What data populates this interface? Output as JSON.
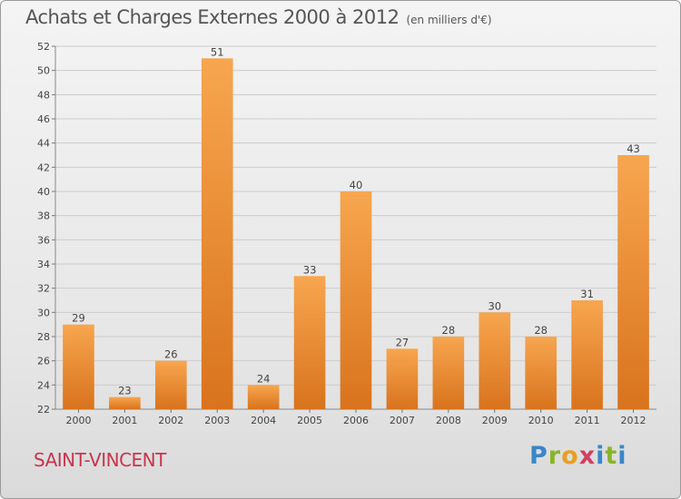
{
  "header": {
    "title": "Achats et Charges Externes 2000 à 2012",
    "unit": "(en milliers d'€)"
  },
  "footer": {
    "city": "SAINT-VINCENT",
    "logo_letters": [
      "P",
      "r",
      "o",
      "x",
      "i",
      "t",
      "i"
    ]
  },
  "colors": {
    "bar_light": "#f7a64f",
    "bar_dark": "#d9731d",
    "grid": "#cccccc",
    "city": "#c8344f"
  },
  "chart_data": {
    "type": "bar",
    "title": "Achats et Charges Externes 2000 à 2012",
    "subtitle": "(en milliers d'€)",
    "xlabel": "",
    "ylabel": "",
    "categories": [
      "2000",
      "2001",
      "2002",
      "2003",
      "2004",
      "2005",
      "2006",
      "2007",
      "2008",
      "2009",
      "2010",
      "2011",
      "2012"
    ],
    "values": [
      29,
      23,
      26,
      51,
      24,
      33,
      40,
      27,
      28,
      30,
      28,
      31,
      43
    ],
    "ylim": [
      22,
      52
    ],
    "yticks": [
      22,
      24,
      26,
      28,
      30,
      32,
      34,
      36,
      38,
      40,
      42,
      44,
      46,
      48,
      50,
      52
    ],
    "grid": true,
    "legend": "none"
  }
}
